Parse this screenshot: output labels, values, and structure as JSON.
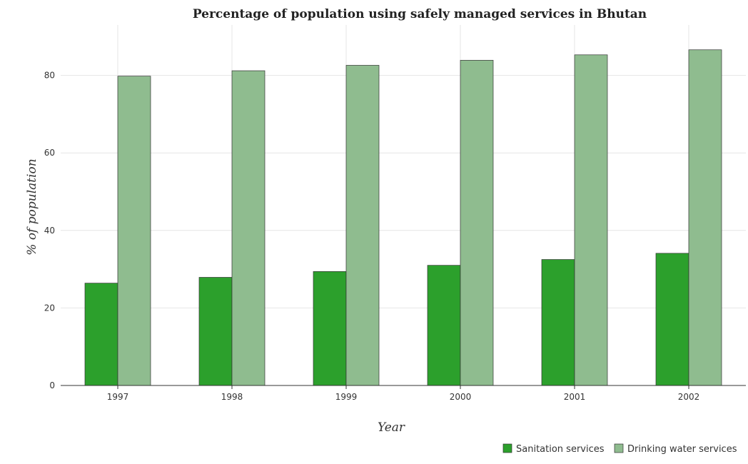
{
  "chart_data": {
    "type": "bar",
    "title": "Percentage of population using safely managed services in Bhutan",
    "xlabel": "Year",
    "ylabel": "% of population",
    "categories": [
      "1997",
      "1998",
      "1999",
      "2000",
      "2001",
      "2002"
    ],
    "series": [
      {
        "name": "Sanitation services",
        "values": [
          26.4,
          27.9,
          29.4,
          31.0,
          32.5,
          34.1
        ],
        "color": "#2ca02c"
      },
      {
        "name": "Drinking water services",
        "values": [
          79.8,
          81.2,
          82.6,
          83.9,
          85.3,
          86.6
        ],
        "color": "#8fbc8f"
      }
    ],
    "yticks": [
      0,
      20,
      40,
      60,
      80
    ],
    "ylim": [
      0,
      93
    ],
    "grid": true,
    "legend_position": "bottom-right"
  }
}
